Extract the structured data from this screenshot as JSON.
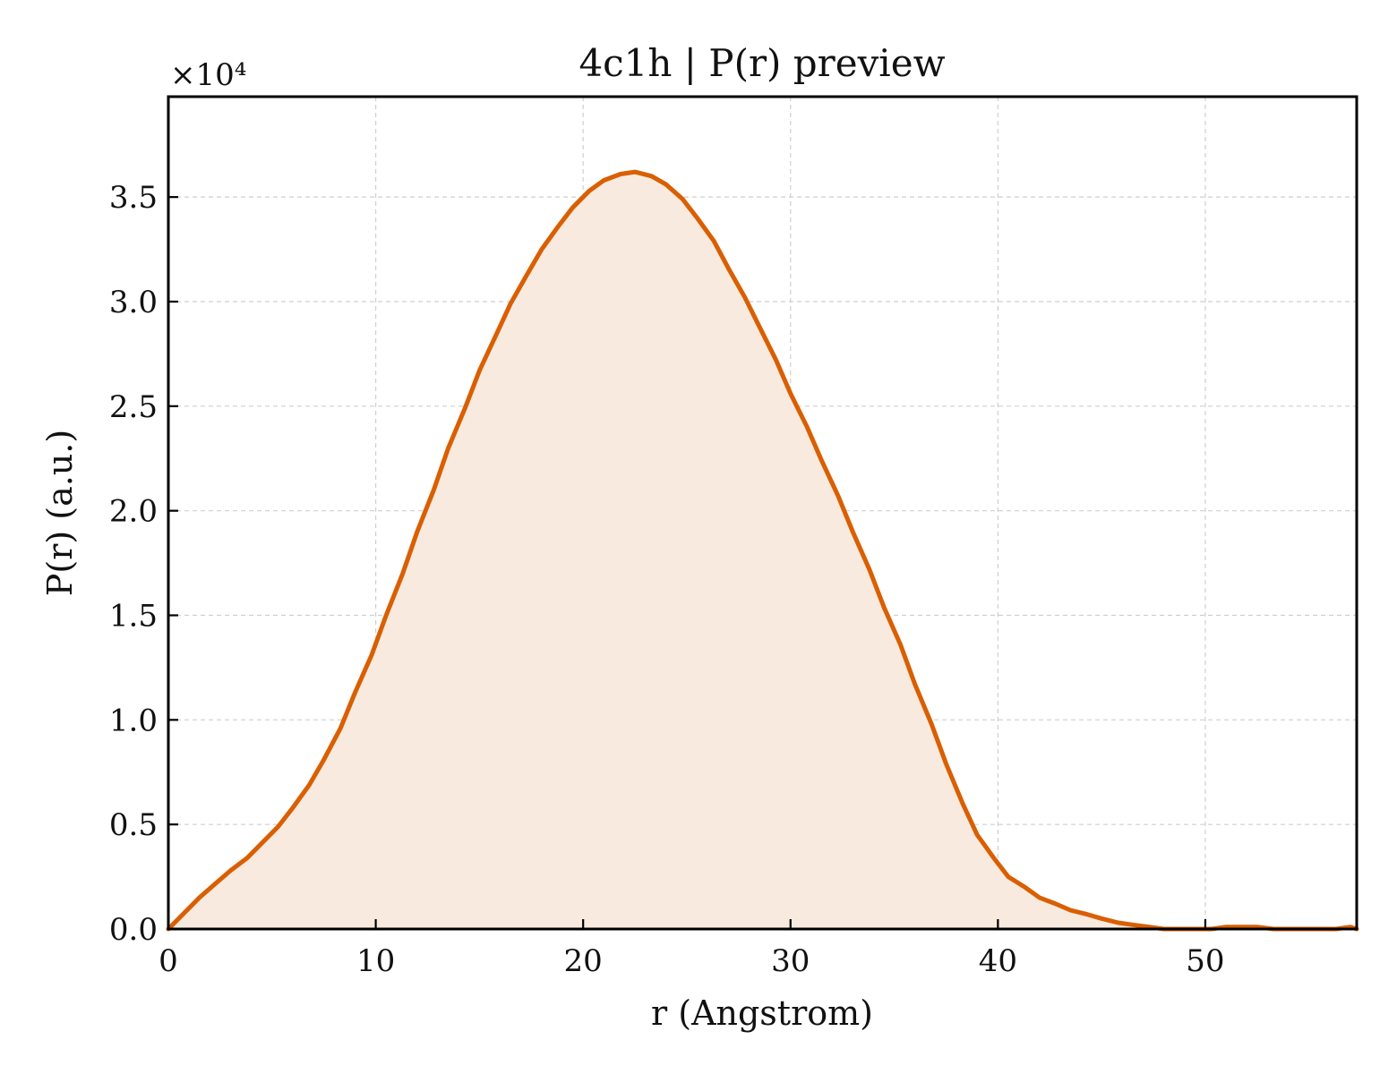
{
  "chart_data": {
    "type": "area",
    "title": "4c1h | P(r) preview",
    "xlabel": "r (Angstrom)",
    "ylabel": "P(r) (a.u.)",
    "y_multiplier_label": "×10⁴",
    "xlim": [
      0,
      57.3
    ],
    "ylim": [
      0,
      3.98
    ],
    "grid": true,
    "colors": {
      "line": "#d95f02",
      "fill": "#f9eadf"
    },
    "x_ticks": [
      0,
      10,
      20,
      30,
      40,
      50
    ],
    "x_tick_labels": [
      "0",
      "10",
      "20",
      "30",
      "40",
      "50"
    ],
    "y_ticks": [
      0,
      0.5,
      1.0,
      1.5,
      2.0,
      2.5,
      3.0,
      3.5
    ],
    "y_tick_labels": [
      "0.0",
      "0.5",
      "1.0",
      "1.5",
      "2.0",
      "2.5",
      "3.0",
      "3.5"
    ],
    "series": [
      {
        "x": [
          0,
          0.8,
          1.5,
          2.3,
          3.0,
          3.8,
          4.5,
          5.3,
          6.0,
          6.8,
          7.5,
          8.3,
          9.0,
          9.8,
          10.5,
          11.3,
          12.0,
          12.8,
          13.5,
          14.3,
          15.0,
          15.8,
          16.5,
          17.3,
          18.0,
          18.8,
          19.5,
          20.3,
          21.0,
          21.8,
          22.5,
          23.3,
          24.0,
          24.8,
          25.5,
          26.3,
          27.0,
          27.8,
          28.5,
          29.3,
          30.0,
          30.8,
          31.5,
          32.3,
          33.0,
          33.8,
          34.5,
          35.3,
          36.0,
          36.8,
          37.5,
          38.3,
          39.0,
          39.8,
          40.5,
          41.3,
          42.0,
          42.8,
          43.5,
          44.3,
          45.0,
          45.8,
          46.5,
          47.3,
          48.0,
          48.8,
          49.5,
          50.3,
          51.0,
          51.8,
          52.5,
          53.3,
          54.0,
          54.8,
          55.5,
          56.3,
          57.0,
          57.3
        ],
        "y": [
          0.0,
          0.08,
          0.15,
          0.22,
          0.28,
          0.34,
          0.41,
          0.49,
          0.58,
          0.69,
          0.81,
          0.96,
          1.13,
          1.31,
          1.5,
          1.7,
          1.9,
          2.1,
          2.3,
          2.49,
          2.67,
          2.84,
          2.99,
          3.13,
          3.25,
          3.36,
          3.45,
          3.53,
          3.58,
          3.61,
          3.62,
          3.6,
          3.56,
          3.49,
          3.4,
          3.29,
          3.16,
          3.02,
          2.88,
          2.72,
          2.56,
          2.4,
          2.24,
          2.07,
          1.9,
          1.72,
          1.54,
          1.36,
          1.17,
          0.98,
          0.79,
          0.6,
          0.45,
          0.34,
          0.25,
          0.2,
          0.15,
          0.12,
          0.09,
          0.07,
          0.05,
          0.03,
          0.02,
          0.01,
          0.0,
          0.0,
          0.0,
          0.0,
          0.01,
          0.01,
          0.01,
          0.0,
          0.0,
          0.0,
          0.0,
          0.0,
          0.01,
          0.0
        ]
      }
    ]
  }
}
